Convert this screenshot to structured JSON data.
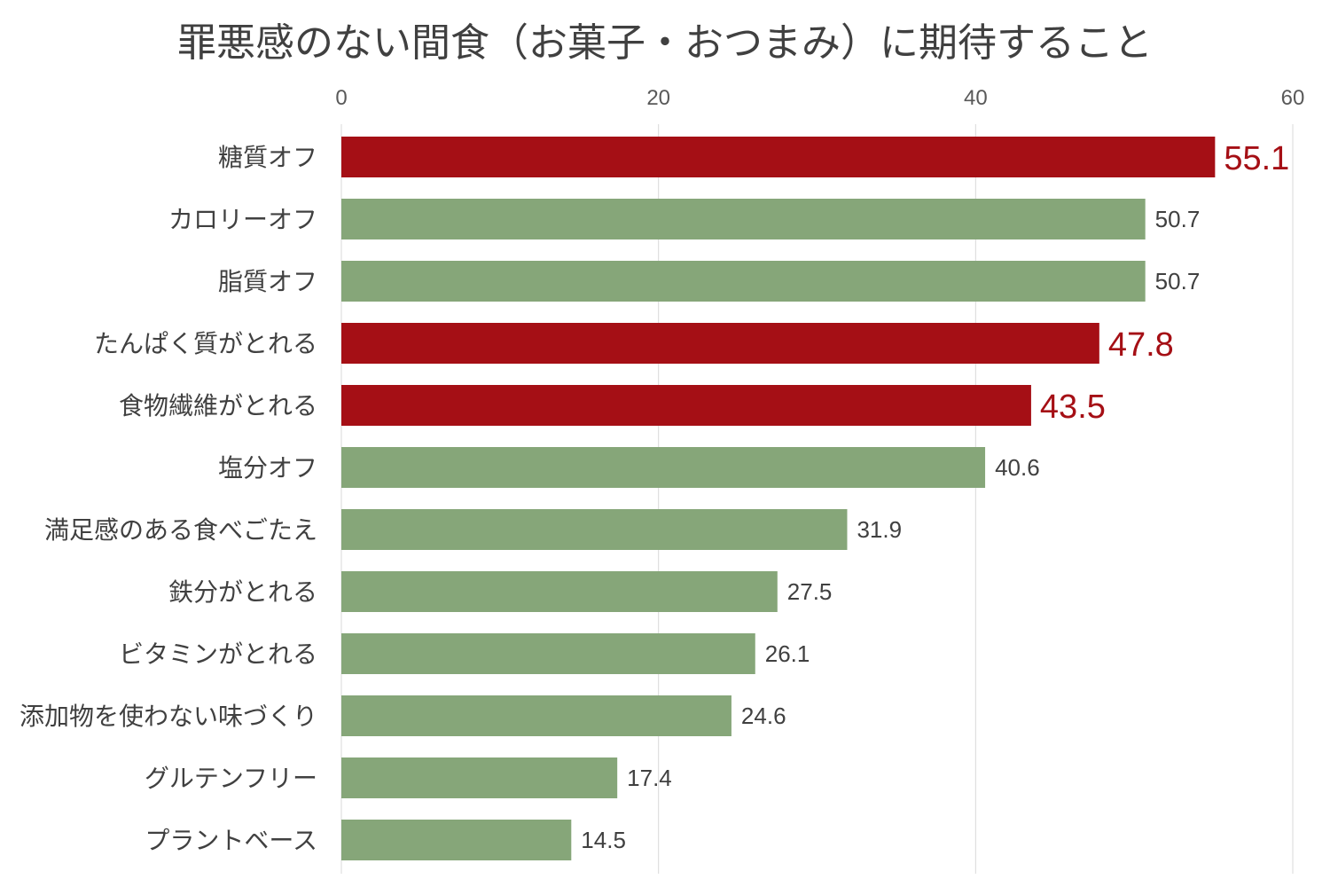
{
  "chart_data": {
    "type": "bar",
    "orientation": "horizontal",
    "title": "罪悪感のない間食（お菓子・おつまみ）に期待すること",
    "xlabel": "",
    "ylabel": "",
    "xlim": [
      0,
      60
    ],
    "x_ticks": [
      "0",
      "20",
      "40",
      "60"
    ],
    "x_axis_position": "top",
    "grid": true,
    "legend": "none",
    "categories": [
      "糖質オフ",
      "カロリーオフ",
      "脂質オフ",
      "たんぱく質がとれる",
      "食物繊維がとれる",
      "塩分オフ",
      "満足感のある食べごたえ",
      "鉄分がとれる",
      "ビタミンがとれる",
      "添加物を使わない味づくり",
      "グルテンフリー",
      "プラントベース"
    ],
    "values": [
      55.1,
      50.7,
      50.7,
      47.8,
      43.5,
      40.6,
      31.9,
      27.5,
      26.1,
      24.6,
      17.4,
      14.5
    ],
    "value_labels": [
      "55.1",
      "50.7",
      "50.7",
      "47.8",
      "43.5",
      "40.6",
      "31.9",
      "27.5",
      "26.1",
      "24.6",
      "17.4",
      "14.5"
    ],
    "highlighted": [
      true,
      false,
      false,
      true,
      true,
      false,
      false,
      false,
      false,
      false,
      false,
      false
    ],
    "colors": {
      "highlight": "#a50f15",
      "normal": "#86a679",
      "highlight_label": "#a50f15",
      "normal_label": "#404040"
    }
  }
}
